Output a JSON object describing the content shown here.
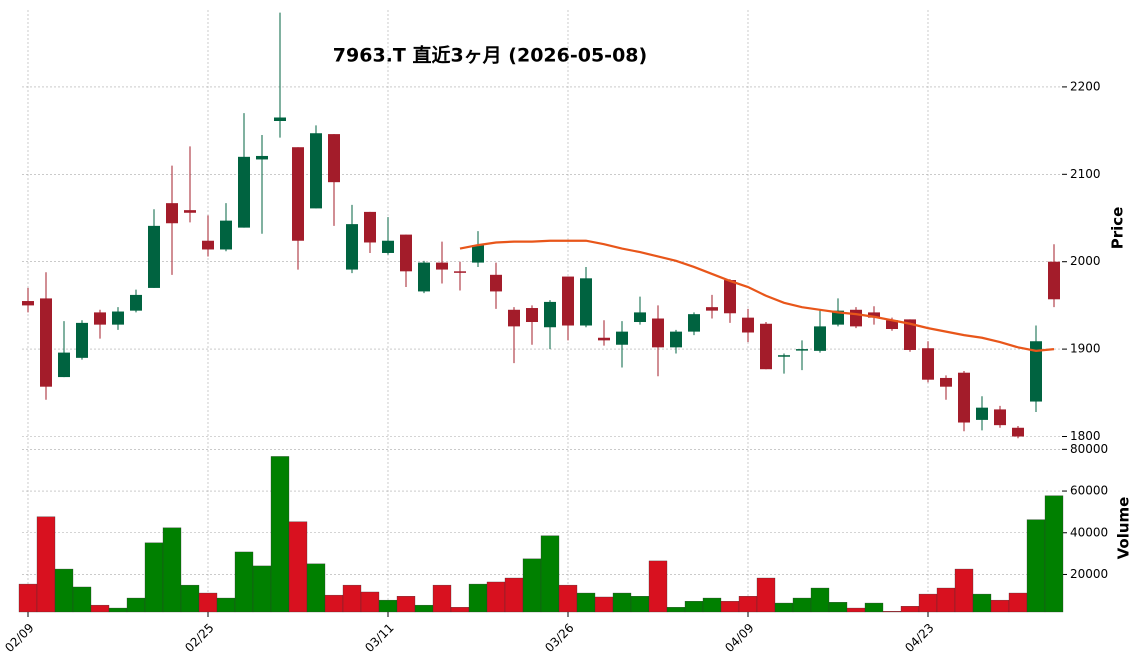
{
  "chart_data": {
    "type": "candlestick",
    "title": "7963.T  直近3ヶ月  (2026-05-08)",
    "ylabel": "Price",
    "categories": [
      "02/09",
      null,
      null,
      null,
      null,
      null,
      null,
      null,
      null,
      null,
      "02/25",
      null,
      null,
      null,
      null,
      null,
      null,
      null,
      null,
      null,
      "03/11",
      null,
      null,
      null,
      null,
      null,
      null,
      null,
      null,
      null,
      "03/26",
      null,
      null,
      null,
      null,
      null,
      null,
      null,
      null,
      null,
      "04/09",
      null,
      null,
      null,
      null,
      null,
      null,
      null,
      null,
      null,
      "04/23",
      null,
      null,
      null,
      null,
      null,
      null,
      null
    ],
    "open": [
      1955,
      1958,
      1868,
      1890,
      1942,
      1928,
      1944,
      1970,
      2067,
      2059,
      2024,
      2014,
      2039,
      2117,
      2161,
      2131,
      2061,
      2146,
      1991,
      2057,
      2010,
      2031,
      1966,
      1999,
      1989,
      1999,
      1985,
      1945,
      1947,
      1925,
      1983,
      1927,
      1913,
      1905,
      1931,
      1935,
      1902,
      1920,
      1948,
      1979,
      1936,
      1929,
      1892,
      1899,
      1898,
      1928,
      1945,
      1942,
      1933,
      1934,
      1901,
      1867,
      1873,
      1819,
      1831,
      1810,
      1840,
      2000
    ],
    "high": [
      1970,
      1988,
      1932,
      1933,
      1945,
      1948,
      1968,
      2060,
      2110,
      2132,
      2053,
      2067,
      2170,
      2145,
      2285,
      2131,
      2156,
      2146,
      2065,
      2057,
      2051,
      2031,
      2001,
      2023,
      2000,
      2035,
      1999,
      1948,
      1950,
      1956,
      1983,
      1994,
      1933,
      1932,
      1960,
      1950,
      1922,
      1942,
      1962,
      1980,
      1946,
      1931,
      1895,
      1910,
      1945,
      1958,
      1948,
      1949,
      1936,
      1934,
      1909,
      1870,
      1875,
      1846,
      1835,
      1812,
      1927,
      2020
    ],
    "low": [
      1942,
      1842,
      1868,
      1888,
      1912,
      1922,
      1942,
      1970,
      1985,
      2045,
      2006,
      2012,
      2039,
      2032,
      2142,
      1991,
      2061,
      2041,
      1987,
      2010,
      2008,
      1971,
      1964,
      1975,
      1967,
      1994,
      1946,
      1884,
      1905,
      1900,
      1910,
      1925,
      1904,
      1879,
      1928,
      1869,
      1895,
      1916,
      1935,
      1930,
      1908,
      1877,
      1872,
      1876,
      1896,
      1926,
      1924,
      1928,
      1921,
      1897,
      1862,
      1842,
      1806,
      1807,
      1810,
      1798,
      1828,
      1948
    ],
    "close": [
      1950,
      1857,
      1896,
      1930,
      1928,
      1943,
      1962,
      2041,
      2044,
      2056,
      2014,
      2047,
      2120,
      2121,
      2165,
      2024,
      2147,
      2091,
      2043,
      2022,
      2024,
      1989,
      1999,
      1991,
      1988,
      2019,
      1966,
      1926,
      1931,
      1954,
      1927,
      1981,
      1910,
      1920,
      1942,
      1902,
      1920,
      1940,
      1944,
      1941,
      1919,
      1877,
      1893,
      1900,
      1926,
      1944,
      1926,
      1936,
      1923,
      1899,
      1865,
      1857,
      1816,
      1833,
      1813,
      1800,
      1909,
      1957
    ],
    "up_color": "#006340",
    "down_color": "#a31c2a",
    "moving_average": {
      "color": "#e8561a",
      "values": [
        null,
        null,
        null,
        null,
        null,
        null,
        null,
        null,
        null,
        null,
        null,
        null,
        null,
        null,
        null,
        null,
        null,
        null,
        null,
        null,
        null,
        null,
        null,
        null,
        2015,
        2019,
        2022,
        2023,
        2023,
        2024,
        2024,
        2024,
        2020,
        2015,
        2011,
        2006,
        2001,
        1994,
        1986,
        1978,
        1971,
        1961,
        1953,
        1948,
        1945,
        1942,
        1940,
        1937,
        1933,
        1929,
        1924,
        1920,
        1916,
        1913,
        1908,
        1902,
        1898,
        1900
      ]
    },
    "ylim": [
      1796,
      2288
    ],
    "yticks": [
      1800,
      1900,
      2000,
      2100,
      2200
    ],
    "grid": true,
    "volume": {
      "ylabel": "Volume",
      "up_color": "#008000",
      "down_color": "#d8111f",
      "values": [
        15400,
        47700,
        22600,
        14000,
        5300,
        3900,
        8700,
        35200,
        42400,
        14900,
        11100,
        8700,
        30800,
        24100,
        76600,
        45300,
        25100,
        10100,
        14900,
        11600,
        7700,
        9600,
        5300,
        14900,
        4300,
        15400,
        16400,
        18300,
        27500,
        38600,
        14900,
        11100,
        9200,
        11100,
        9600,
        26500,
        4300,
        7200,
        8700,
        7200,
        9600,
        18300,
        6300,
        8700,
        13500,
        6700,
        3900,
        6300,
        2400,
        4800,
        10600,
        13500,
        22600,
        10600,
        7700,
        11100,
        46300,
        57800
      ],
      "ylim": [
        2000,
        84000
      ],
      "yticks": [
        20000,
        40000,
        60000,
        80000
      ]
    }
  }
}
